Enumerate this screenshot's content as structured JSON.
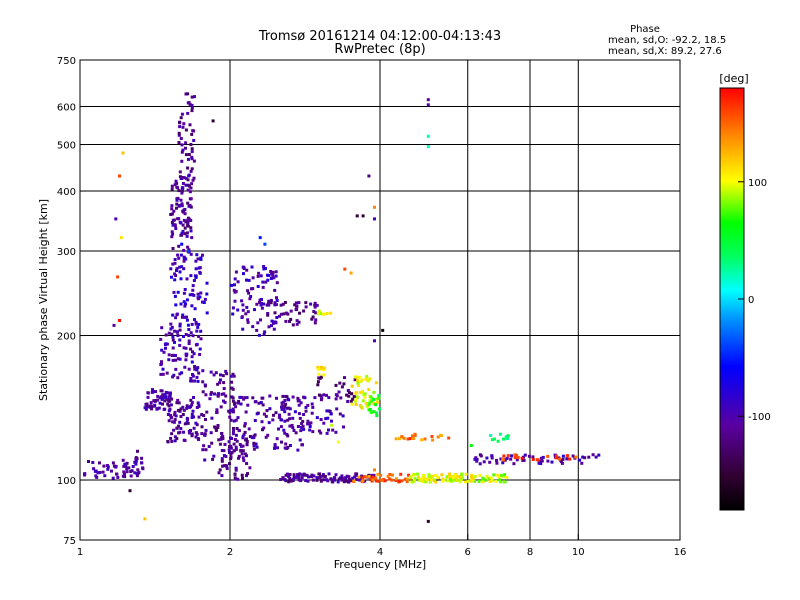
{
  "chart_data": {
    "type": "scatter",
    "title": "Tromsø 20161214 04:12:00-04:13:43",
    "subtitle": "RwPretec (8p)",
    "xlabel": "Frequency [MHz]",
    "ylabel": "Stationary phase Virtual Height [km]",
    "x_scale": "log",
    "y_scale": "log",
    "xlim": [
      1,
      16
    ],
    "ylim": [
      75,
      750
    ],
    "grid": true,
    "x_ticks": [
      {
        "value": 1,
        "label": "1",
        "grid": false
      },
      {
        "value": 2,
        "label": "2",
        "grid": true
      },
      {
        "value": 4,
        "label": "4",
        "grid": true
      },
      {
        "value": 6,
        "label": "6",
        "grid": true
      },
      {
        "value": 8,
        "label": "8",
        "grid": true
      },
      {
        "value": 10,
        "label": "10",
        "grid": true
      },
      {
        "value": 16,
        "label": "16",
        "grid": false
      }
    ],
    "y_ticks": [
      {
        "value": 75,
        "label": "75",
        "grid": false
      },
      {
        "value": 100,
        "label": "100",
        "grid": true
      },
      {
        "value": 200,
        "label": "200",
        "grid": true
      },
      {
        "value": 300,
        "label": "300",
        "grid": true
      },
      {
        "value": 400,
        "label": "400",
        "grid": true
      },
      {
        "value": 500,
        "label": "500",
        "grid": true
      },
      {
        "value": 600,
        "label": "600",
        "grid": true
      },
      {
        "value": 750,
        "label": "750",
        "grid": false
      }
    ],
    "colorbar": {
      "label": "[deg]",
      "range": [
        -180,
        180
      ],
      "ticks": [
        {
          "value": 100,
          "label": "100"
        },
        {
          "value": 0,
          "label": "0"
        },
        {
          "value": -100,
          "label": "-100"
        }
      ]
    },
    "phase_stats": {
      "heading": "Phase",
      "line_o": "mean, sd,O: -92.2, 18.5",
      "line_x": "mean, sd,X:  89.2, 27.6"
    },
    "clusters": [
      {
        "x_range": [
          1.02,
          1.28
        ],
        "y_range": [
          100,
          110
        ],
        "n": 45,
        "phase": -105
      },
      {
        "x_range": [
          1.28,
          1.35
        ],
        "y_range": [
          102,
          115
        ],
        "n": 18,
        "phase": -110
      },
      {
        "x_range": [
          1.35,
          1.52
        ],
        "y_range": [
          140,
          155
        ],
        "n": 60,
        "phase": -105
      },
      {
        "x_range": [
          1.45,
          1.75
        ],
        "y_range": [
          160,
          210
        ],
        "n": 90,
        "phase": -100
      },
      {
        "x_range": [
          1.5,
          1.75
        ],
        "y_range": [
          120,
          150
        ],
        "n": 80,
        "phase": -108
      },
      {
        "x_range": [
          1.52,
          1.68
        ],
        "y_range": [
          300,
          420
        ],
        "n": 90,
        "phase": -110
      },
      {
        "x_range": [
          1.58,
          1.7
        ],
        "y_range": [
          420,
          600
        ],
        "n": 50,
        "phase": -112
      },
      {
        "x_range": [
          1.62,
          1.7
        ],
        "y_range": [
          600,
          640
        ],
        "n": 8,
        "phase": -115
      },
      {
        "x_range": [
          1.52,
          1.8
        ],
        "y_range": [
          210,
          300
        ],
        "n": 90,
        "phase": -90
      },
      {
        "x_range": [
          1.75,
          2.05
        ],
        "y_range": [
          110,
          170
        ],
        "n": 90,
        "phase": -110
      },
      {
        "x_range": [
          1.9,
          2.2
        ],
        "y_range": [
          100,
          130
        ],
        "n": 60,
        "phase": -112
      },
      {
        "x_range": [
          2.0,
          2.8
        ],
        "y_range": [
          115,
          150
        ],
        "n": 120,
        "phase": -108
      },
      {
        "x_range": [
          2.0,
          2.5
        ],
        "y_range": [
          200,
          280
        ],
        "n": 90,
        "phase": -98
      },
      {
        "x_range": [
          2.3,
          3.0
        ],
        "y_range": [
          210,
          235
        ],
        "n": 50,
        "phase": -115
      },
      {
        "x_range": [
          2.5,
          3.4
        ],
        "y_range": [
          125,
          150
        ],
        "n": 60,
        "phase": -100
      },
      {
        "x_range": [
          3.0,
          3.6
        ],
        "y_range": [
          145,
          165
        ],
        "n": 30,
        "phase": -120
      },
      {
        "x_range": [
          3.5,
          4.0
        ],
        "y_range": [
          140,
          165
        ],
        "n": 45,
        "phase": 100
      },
      {
        "x_range": [
          3.8,
          4.0
        ],
        "y_range": [
          135,
          150
        ],
        "n": 15,
        "phase": 60
      },
      {
        "x_range": [
          3.0,
          3.2
        ],
        "y_range": [
          220,
          225
        ],
        "n": 8,
        "phase": 90
      },
      {
        "x_range": [
          3.0,
          3.1
        ],
        "y_range": [
          165,
          175
        ],
        "n": 8,
        "phase": 110
      },
      {
        "x_range": [
          2.5,
          3.9
        ],
        "y_range": [
          99,
          103
        ],
        "n": 110,
        "phase": -110
      },
      {
        "x_range": [
          3.5,
          4.6
        ],
        "y_range": [
          99,
          103
        ],
        "n": 40,
        "phase": 150
      },
      {
        "x_range": [
          4.6,
          6.2
        ],
        "y_range": [
          99,
          103
        ],
        "n": 80,
        "phase": 100
      },
      {
        "x_range": [
          6.2,
          7.2
        ],
        "y_range": [
          99,
          103
        ],
        "n": 30,
        "phase": 90
      },
      {
        "x_range": [
          4.3,
          5.5
        ],
        "y_range": [
          121,
          125
        ],
        "n": 18,
        "phase": 140
      },
      {
        "x_range": [
          6.2,
          11.0
        ],
        "y_range": [
          108,
          113
        ],
        "n": 60,
        "phase": -100
      },
      {
        "x_range": [
          7.0,
          10.0
        ],
        "y_range": [
          110,
          113
        ],
        "n": 20,
        "phase": 160
      },
      {
        "x_range": [
          6.6,
          7.3
        ],
        "y_range": [
          120,
          125
        ],
        "n": 10,
        "phase": 40
      }
    ],
    "isolated_points": [
      {
        "x": 1.2,
        "y": 430,
        "phase": 160
      },
      {
        "x": 1.22,
        "y": 480,
        "phase": 120
      },
      {
        "x": 1.18,
        "y": 350,
        "phase": -100
      },
      {
        "x": 1.21,
        "y": 320,
        "phase": 110
      },
      {
        "x": 1.19,
        "y": 265,
        "phase": 160
      },
      {
        "x": 1.2,
        "y": 215,
        "phase": 175
      },
      {
        "x": 1.17,
        "y": 210,
        "phase": -110
      },
      {
        "x": 1.35,
        "y": 83,
        "phase": 120
      },
      {
        "x": 1.26,
        "y": 95,
        "phase": -150
      },
      {
        "x": 5.0,
        "y": 620,
        "phase": -110
      },
      {
        "x": 5.0,
        "y": 605,
        "phase": -110
      },
      {
        "x": 5.0,
        "y": 520,
        "phase": 20
      },
      {
        "x": 5.0,
        "y": 495,
        "phase": 20
      },
      {
        "x": 5.0,
        "y": 82,
        "phase": -150
      },
      {
        "x": 3.8,
        "y": 430,
        "phase": -120
      },
      {
        "x": 3.9,
        "y": 370,
        "phase": 140
      },
      {
        "x": 3.9,
        "y": 350,
        "phase": -100
      },
      {
        "x": 3.6,
        "y": 355,
        "phase": -150
      },
      {
        "x": 3.7,
        "y": 355,
        "phase": -150
      },
      {
        "x": 3.4,
        "y": 275,
        "phase": 160
      },
      {
        "x": 3.5,
        "y": 270,
        "phase": 130
      },
      {
        "x": 4.05,
        "y": 205,
        "phase": -170
      },
      {
        "x": 3.9,
        "y": 195,
        "phase": -100
      },
      {
        "x": 2.3,
        "y": 320,
        "phase": -50
      },
      {
        "x": 2.35,
        "y": 310,
        "phase": -40
      },
      {
        "x": 1.85,
        "y": 560,
        "phase": -150
      },
      {
        "x": 1.6,
        "y": 310,
        "phase": -60
      },
      {
        "x": 1.65,
        "y": 300,
        "phase": -40
      },
      {
        "x": 4.6,
        "y": 122,
        "phase": 170
      },
      {
        "x": 6.1,
        "y": 118,
        "phase": 60
      },
      {
        "x": 3.2,
        "y": 130,
        "phase": 90
      },
      {
        "x": 3.3,
        "y": 120,
        "phase": 100
      },
      {
        "x": 3.9,
        "y": 105,
        "phase": 140
      }
    ]
  }
}
